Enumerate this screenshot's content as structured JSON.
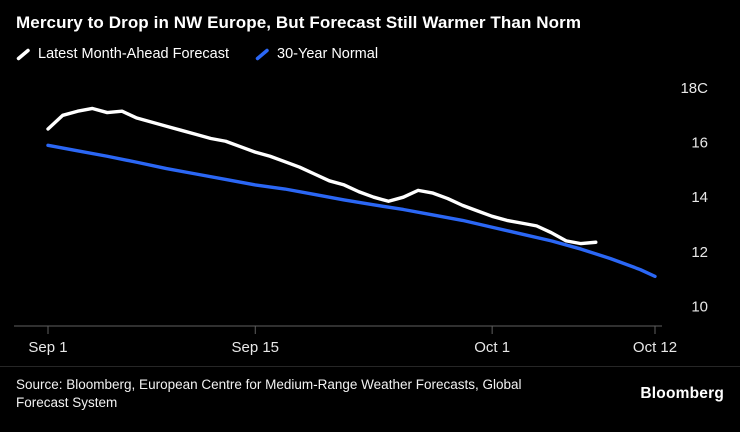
{
  "title": "Mercury to Drop in NW Europe, But Forecast Still Warmer Than Norm",
  "legend": [
    {
      "label": "Latest Month-Ahead Forecast",
      "color": "#ffffff"
    },
    {
      "label": "30-Year Normal",
      "color": "#2b67f5"
    }
  ],
  "footer": {
    "source_line1": "Source: Bloomberg, European Centre for Medium-Range Weather Forecasts, Global",
    "source_line2": "Forecast System",
    "brand": "Bloomberg"
  },
  "chart_data": {
    "type": "line",
    "title": "Mercury to Drop in NW Europe, But Forecast Still Warmer Than Norm",
    "x_unit": "days since Sep 1",
    "xlim": [
      0,
      41
    ],
    "ylim": [
      9.6,
      18.3
    ],
    "grid": false,
    "legend_position": "top-left",
    "y_axis_side": "right",
    "x_ticks": [
      {
        "pos": 0,
        "label": "Sep 1"
      },
      {
        "pos": 14,
        "label": "Sep 15"
      },
      {
        "pos": 30,
        "label": "Oct 1"
      },
      {
        "pos": 41,
        "label": "Oct 12"
      }
    ],
    "y_ticks": [
      {
        "value": 18,
        "label": "18C"
      },
      {
        "value": 16,
        "label": "16"
      },
      {
        "value": 14,
        "label": "14"
      },
      {
        "value": 12,
        "label": "12"
      },
      {
        "value": 10,
        "label": "10"
      }
    ],
    "series": [
      {
        "name": "Latest Month-Ahead Forecast",
        "color": "#ffffff",
        "x": [
          0,
          1,
          2,
          3,
          4,
          5,
          6,
          7,
          8,
          9,
          10,
          11,
          12,
          13,
          14,
          15,
          16,
          17,
          18,
          19,
          20,
          21,
          22,
          23,
          24,
          25,
          26,
          27,
          28,
          29,
          30,
          31,
          32,
          33,
          34,
          35,
          36,
          37
        ],
        "values": [
          16.5,
          17.0,
          17.15,
          17.25,
          17.1,
          17.15,
          16.9,
          16.75,
          16.6,
          16.45,
          16.3,
          16.15,
          16.05,
          15.85,
          15.65,
          15.5,
          15.3,
          15.1,
          14.85,
          14.6,
          14.45,
          14.2,
          14.0,
          13.85,
          14.0,
          14.25,
          14.15,
          13.95,
          13.7,
          13.5,
          13.3,
          13.15,
          13.05,
          12.95,
          12.7,
          12.4,
          12.3,
          12.35
        ]
      },
      {
        "name": "30-Year Normal",
        "color": "#2b67f5",
        "x": [
          0,
          2,
          4,
          6,
          8,
          10,
          12,
          14,
          16,
          18,
          20,
          22,
          24,
          26,
          28,
          30,
          32,
          34,
          36,
          38,
          40,
          41
        ],
        "values": [
          15.9,
          15.7,
          15.5,
          15.28,
          15.05,
          14.85,
          14.65,
          14.45,
          14.3,
          14.1,
          13.9,
          13.72,
          13.55,
          13.35,
          13.15,
          12.9,
          12.65,
          12.4,
          12.1,
          11.75,
          11.35,
          11.1
        ]
      }
    ]
  }
}
